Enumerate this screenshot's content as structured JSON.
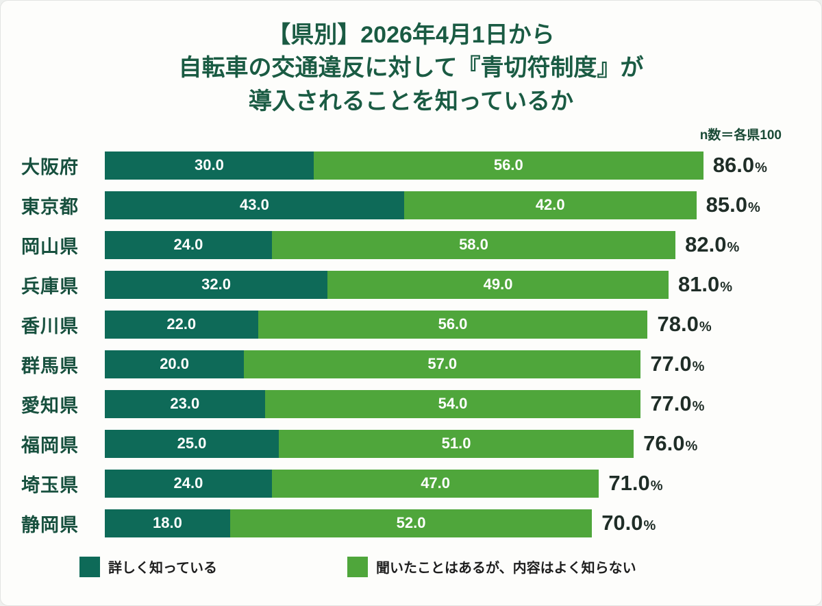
{
  "title": {
    "line1": "【県別】2026年4月1日から",
    "line2": "自転車の交通違反に対して『青切符制度』が",
    "line3": "導入されることを知っているか"
  },
  "note": "n数＝各県100",
  "colors": {
    "title": "#1a5b43",
    "category_label": "#17503e",
    "total_label": "#1f2d27",
    "series_known": "#0e6a58",
    "series_heard": "#4fa63b"
  },
  "chart_data": {
    "type": "bar",
    "orientation": "horizontal",
    "stacked": true,
    "xlim": [
      0,
      100
    ],
    "grid": false,
    "legend_position": "bottom",
    "title": "【県別】2026年4月1日から自転車の交通違反に対して『青切符制度』が導入されることを知っているか",
    "categories": [
      "大阪府",
      "東京都",
      "岡山県",
      "兵庫県",
      "香川県",
      "群馬県",
      "愛知県",
      "福岡県",
      "埼玉県",
      "静岡県"
    ],
    "series": [
      {
        "name": "詳しく知っている",
        "color": "#0e6a58",
        "values": [
          30.0,
          43.0,
          24.0,
          32.0,
          22.0,
          20.0,
          23.0,
          25.0,
          24.0,
          18.0
        ]
      },
      {
        "name": "聞いたことはあるが、内容はよく知らない",
        "color": "#4fa63b",
        "values": [
          56.0,
          42.0,
          58.0,
          49.0,
          56.0,
          57.0,
          54.0,
          51.0,
          47.0,
          52.0
        ]
      }
    ],
    "totals": [
      86.0,
      85.0,
      82.0,
      81.0,
      78.0,
      77.0,
      77.0,
      76.0,
      71.0,
      70.0
    ],
    "total_suffix": "%"
  },
  "legend": {
    "items": [
      {
        "label": "詳しく知っている",
        "color": "#0e6a58"
      },
      {
        "label": "聞いたことはあるが、内容はよく知らない",
        "color": "#4fa63b"
      }
    ]
  }
}
